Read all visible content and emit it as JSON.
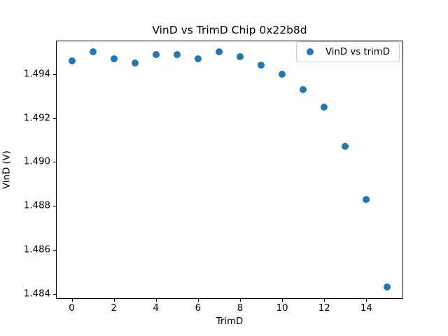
{
  "figure": {
    "background": "#ffffff"
  },
  "chart_data": {
    "type": "scatter",
    "title": "VinD vs TrimD Chip 0x22b8d",
    "xlabel": "TrimD",
    "ylabel": "VinD (V)",
    "legend": {
      "label": "VinD vs trimD",
      "position": "upper right",
      "border_color": "#cccccc"
    },
    "grid": false,
    "xlim": [
      -0.75,
      15.75
    ],
    "ylim": [
      1.483765,
      1.495535
    ],
    "xticks": [
      0,
      2,
      4,
      6,
      8,
      10,
      12,
      14
    ],
    "xtick_labels": [
      "0",
      "2",
      "4",
      "6",
      "8",
      "10",
      "12",
      "14"
    ],
    "yticks": [
      1.484,
      1.486,
      1.488,
      1.49,
      1.492,
      1.494
    ],
    "ytick_labels": [
      "1.484",
      "1.486",
      "1.488",
      "1.490",
      "1.492",
      "1.494"
    ],
    "series": [
      {
        "name": "VinD vs trimD",
        "color": "#1f77b4",
        "x": [
          0,
          1,
          2,
          3,
          4,
          5,
          6,
          7,
          8,
          9,
          10,
          11,
          12,
          13,
          14,
          15
        ],
        "y": [
          1.4946,
          1.495,
          1.4947,
          1.4945,
          1.4949,
          1.4949,
          1.4947,
          1.495,
          1.4948,
          1.4944,
          1.494,
          1.4933,
          1.4925,
          1.4907,
          1.4883,
          1.4843
        ]
      }
    ]
  }
}
